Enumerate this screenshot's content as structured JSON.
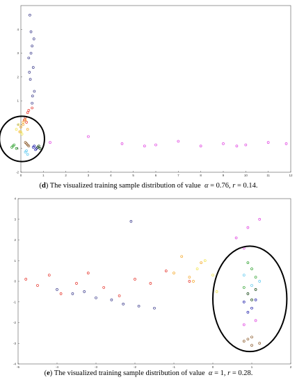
{
  "chart_data": [
    {
      "type": "scatter",
      "panel": "d",
      "caption": {
        "letter": "d",
        "text": "The visualized training sample distribution of value",
        "alpha_symbol": "α",
        "alpha_value": "0.76",
        "r_symbol": "r",
        "r_value": "0.14"
      },
      "xlim": [
        0,
        12
      ],
      "ylim": [
        -2,
        5
      ],
      "xticks": [
        "0",
        "1",
        "2",
        "3",
        "4",
        "5",
        "6",
        "7",
        "8",
        "9",
        "10",
        "11",
        "12"
      ],
      "yticks": [
        "-2",
        "-1",
        "0",
        "1",
        "2",
        "3",
        "4"
      ],
      "grid": false,
      "series": [
        {
          "color": "#3c3c8c",
          "values": [
            [
              0.4,
              4.6
            ],
            [
              0.45,
              3.9
            ],
            [
              0.5,
              3.3
            ],
            [
              0.35,
              2.8
            ],
            [
              0.55,
              2.4
            ],
            [
              0.42,
              1.9
            ],
            [
              0.6,
              1.4
            ],
            [
              0.5,
              0.9
            ],
            [
              0.45,
              3.0
            ],
            [
              0.38,
              2.2
            ],
            [
              0.52,
              1.2
            ],
            [
              0.58,
              3.6
            ]
          ]
        },
        {
          "color": "#e6332a",
          "values": [
            [
              0.2,
              0.3
            ],
            [
              0.3,
              0.5
            ],
            [
              0.25,
              0.1
            ],
            [
              0.5,
              0.7
            ],
            [
              0.15,
              0.2
            ],
            [
              0.35,
              0.6
            ]
          ]
        },
        {
          "color": "#f5a623",
          "values": [
            [
              0.0,
              -0.1
            ],
            [
              0.1,
              0.0
            ],
            [
              0.2,
              0.2
            ],
            [
              -0.05,
              -0.3
            ],
            [
              0.3,
              -0.2
            ],
            [
              0.1,
              0.1
            ]
          ]
        },
        {
          "color": "#f2e34a",
          "values": [
            [
              -0.2,
              -0.2
            ],
            [
              0.0,
              -0.3
            ],
            [
              0.05,
              -0.4
            ],
            [
              -0.1,
              0.0
            ]
          ]
        },
        {
          "color": "#8a5a2b",
          "values": [
            [
              0.2,
              -0.75
            ],
            [
              0.3,
              -0.85
            ],
            [
              0.25,
              -0.8
            ],
            [
              0.35,
              -0.9
            ]
          ]
        },
        {
          "color": "#2ca02c",
          "values": [
            [
              -0.4,
              -0.95
            ],
            [
              -0.3,
              -0.85
            ],
            [
              -0.35,
              -0.9
            ],
            [
              -0.2,
              -1.0
            ]
          ]
        },
        {
          "color": "#1a1aa8",
          "values": [
            [
              0.55,
              -0.95
            ],
            [
              0.65,
              -1.05
            ],
            [
              0.6,
              -0.9
            ],
            [
              0.7,
              -1.0
            ]
          ]
        },
        {
          "color": "#0b3d0b",
          "values": [
            [
              0.75,
              -0.95
            ],
            [
              0.85,
              -1.0
            ],
            [
              0.8,
              -0.9
            ]
          ]
        },
        {
          "color": "#5bc8f0",
          "values": [
            [
              0.2,
              -1.15
            ],
            [
              0.3,
              -1.25
            ],
            [
              0.25,
              -1.1
            ]
          ]
        },
        {
          "color": "#e040e0",
          "values": [
            [
              1.3,
              -0.75
            ],
            [
              3.0,
              -0.5
            ],
            [
              4.5,
              -0.8
            ],
            [
              6.0,
              -0.85
            ],
            [
              7.0,
              -0.7
            ],
            [
              8.0,
              -0.9
            ],
            [
              9.0,
              -0.8
            ],
            [
              10.0,
              -0.85
            ],
            [
              11.0,
              -0.75
            ],
            [
              11.8,
              -0.8
            ],
            [
              5.5,
              -0.9
            ],
            [
              9.6,
              -0.9
            ]
          ]
        }
      ],
      "annotation": "ellipse"
    },
    {
      "type": "scatter",
      "panel": "e",
      "caption": {
        "letter": "e",
        "text": "The visualized training sample distribution of value",
        "alpha_symbol": "α",
        "alpha_value": "1",
        "r_symbol": "r",
        "r_value": "0.28"
      },
      "xlim": [
        -5,
        2
      ],
      "ylim": [
        -4,
        4
      ],
      "xticks": [
        "-5",
        "-4",
        "-3",
        "-2",
        "-1",
        "0",
        "1",
        "2"
      ],
      "yticks": [
        "-4",
        "-3",
        "-2",
        "-1",
        "0",
        "1",
        "2",
        "3",
        "4"
      ],
      "grid": false,
      "series": [
        {
          "color": "#e6332a",
          "values": [
            [
              -4.8,
              0.1
            ],
            [
              -4.5,
              -0.2
            ],
            [
              -4.2,
              0.3
            ],
            [
              -3.9,
              -0.6
            ],
            [
              -3.5,
              -0.1
            ],
            [
              -3.2,
              0.4
            ],
            [
              -2.8,
              -0.3
            ],
            [
              -2.4,
              -0.7
            ],
            [
              -2.0,
              0.1
            ],
            [
              -1.6,
              -0.1
            ],
            [
              -1.2,
              0.5
            ],
            [
              -0.6,
              0.0
            ]
          ]
        },
        {
          "color": "#3c3c8c",
          "values": [
            [
              -4.0,
              -0.4
            ],
            [
              -3.6,
              -0.6
            ],
            [
              -3.3,
              -0.5
            ],
            [
              -3.0,
              -0.8
            ],
            [
              -2.6,
              -0.9
            ],
            [
              -2.3,
              -1.1
            ],
            [
              -1.9,
              -1.2
            ],
            [
              -1.5,
              -1.3
            ],
            [
              -2.1,
              2.9
            ]
          ]
        },
        {
          "color": "#f5a623",
          "values": [
            [
              -1.0,
              0.4
            ],
            [
              -0.6,
              0.2
            ],
            [
              -0.3,
              0.9
            ],
            [
              -0.8,
              1.2
            ],
            [
              -0.5,
              0.0
            ]
          ]
        },
        {
          "color": "#f2e34a",
          "values": [
            [
              -0.2,
              1.0
            ],
            [
              0.0,
              0.3
            ],
            [
              -0.4,
              0.6
            ],
            [
              0.1,
              -0.5
            ]
          ]
        },
        {
          "color": "#2ca02c",
          "values": [
            [
              0.9,
              0.9
            ],
            [
              1.1,
              0.2
            ],
            [
              1.0,
              0.6
            ],
            [
              0.8,
              -0.3
            ]
          ]
        },
        {
          "color": "#0b3d0b",
          "values": [
            [
              0.9,
              -0.6
            ],
            [
              1.1,
              -0.4
            ],
            [
              1.0,
              -0.9
            ]
          ]
        },
        {
          "color": "#5bc8f0",
          "values": [
            [
              0.8,
              0.3
            ],
            [
              1.2,
              0.0
            ],
            [
              1.0,
              -0.2
            ]
          ]
        },
        {
          "color": "#1a1aa8",
          "values": [
            [
              0.8,
              -1.0
            ],
            [
              1.0,
              -1.3
            ],
            [
              1.1,
              -0.9
            ],
            [
              0.9,
              -1.5
            ]
          ]
        },
        {
          "color": "#e040e0",
          "values": [
            [
              0.6,
              2.1
            ],
            [
              0.8,
              1.6
            ],
            [
              0.9,
              2.6
            ],
            [
              1.2,
              3.0
            ],
            [
              1.1,
              -1.9
            ],
            [
              0.8,
              -2.1
            ]
          ]
        },
        {
          "color": "#8a5a2b",
          "values": [
            [
              0.8,
              -2.9
            ],
            [
              1.0,
              -3.1
            ],
            [
              0.9,
              -2.8
            ],
            [
              1.2,
              -3.0
            ],
            [
              1.0,
              -2.7
            ]
          ]
        }
      ],
      "annotation": "ellipse"
    }
  ]
}
